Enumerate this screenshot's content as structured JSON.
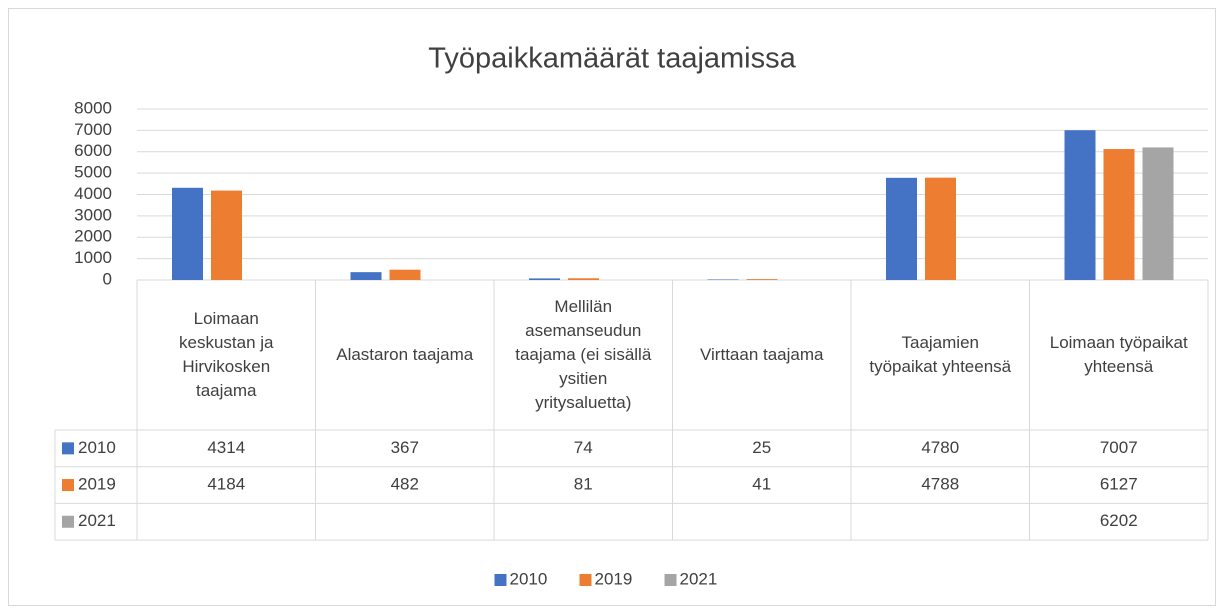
{
  "chart_data": {
    "type": "bar",
    "title": "Työpaikkamäärät taajamissa",
    "categories": [
      "Loimaan keskustan ja Hirvikosken taajama",
      "Alastaron taajama",
      "Mellilän asemanseudun taajama (ei sisällä ysitien yritysaluetta)",
      "Virttaan taajama",
      "Taajamien työpaikat yhteensä",
      "Loimaan työpaikat yhteensä"
    ],
    "series": [
      {
        "name": "2010",
        "color": "#4472c4",
        "values": [
          4314,
          367,
          74,
          25,
          4780,
          7007
        ]
      },
      {
        "name": "2019",
        "color": "#ed7d31",
        "values": [
          4184,
          482,
          81,
          41,
          4788,
          6127
        ]
      },
      {
        "name": "2021",
        "color": "#a5a5a5",
        "values": [
          null,
          null,
          null,
          null,
          null,
          6202
        ]
      }
    ],
    "ylim": [
      0,
      8000
    ],
    "yticks": [
      0,
      1000,
      2000,
      3000,
      4000,
      5000,
      6000,
      7000,
      8000
    ],
    "grid": true,
    "legend": "bottom"
  }
}
